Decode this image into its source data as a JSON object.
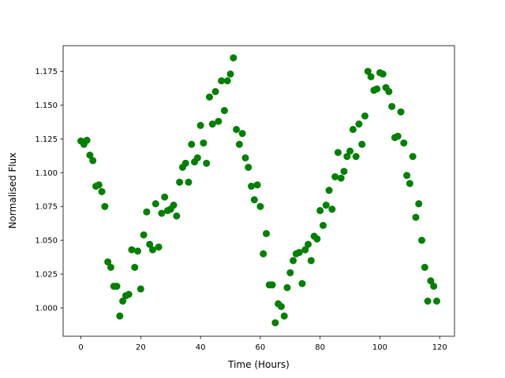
{
  "chart_data": {
    "type": "scatter",
    "x_label": "Time (Hours)",
    "y_label": "Normalised Flux",
    "color": "#008000",
    "x": [
      0,
      1,
      2,
      3,
      4,
      5,
      6,
      7,
      8,
      9,
      10,
      11,
      12,
      13,
      14,
      15,
      16,
      17,
      18,
      19,
      20,
      21,
      22,
      23,
      24,
      25,
      26,
      27,
      28,
      29,
      30,
      31,
      32,
      33,
      34,
      35,
      36,
      37,
      38,
      39,
      40,
      41,
      42,
      43,
      44,
      45,
      46,
      47,
      48,
      49,
      50,
      51,
      52,
      53,
      54,
      55,
      56,
      57,
      58,
      59,
      60,
      61,
      62,
      63,
      64,
      65,
      66,
      67,
      68,
      69,
      70,
      71,
      72,
      73,
      74,
      75,
      76,
      77,
      78,
      79,
      80,
      81,
      82,
      83,
      84,
      85,
      86,
      87,
      88,
      89,
      90,
      91,
      92,
      93,
      94,
      95,
      96,
      97,
      98,
      99,
      100,
      101,
      102,
      103,
      104,
      105,
      106,
      107,
      108,
      109,
      110,
      111,
      112,
      113,
      114,
      115,
      116,
      117,
      118,
      119
    ],
    "values": [
      1.1235,
      1.121,
      1.124,
      1.113,
      1.109,
      1.09,
      1.091,
      1.086,
      1.075,
      1.034,
      1.03,
      1.016,
      1.016,
      0.994,
      1.005,
      1.009,
      1.01,
      1.043,
      1.03,
      1.042,
      1.014,
      1.054,
      1.071,
      1.047,
      1.043,
      1.077,
      1.045,
      1.07,
      1.082,
      1.072,
      1.073,
      1.076,
      1.068,
      1.093,
      1.104,
      1.107,
      1.093,
      1.121,
      1.108,
      1.111,
      1.135,
      1.122,
      1.107,
      1.156,
      1.136,
      1.16,
      1.138,
      1.168,
      1.146,
      1.168,
      1.173,
      1.185,
      1.132,
      1.121,
      1.129,
      1.111,
      1.104,
      1.09,
      1.08,
      1.091,
      1.075,
      1.04,
      1.055,
      1.017,
      1.017,
      0.989,
      1.003,
      1.001,
      0.994,
      1.015,
      1.026,
      1.035,
      1.04,
      1.041,
      1.018,
      1.043,
      1.047,
      1.035,
      1.053,
      1.051,
      1.072,
      1.061,
      1.076,
      1.087,
      1.073,
      1.097,
      1.115,
      1.096,
      1.101,
      1.112,
      1.116,
      1.132,
      1.112,
      1.136,
      1.121,
      1.142,
      1.175,
      1.171,
      1.161,
      1.162,
      1.174,
      1.173,
      1.163,
      1.16,
      1.149,
      1.126,
      1.127,
      1.145,
      1.122,
      1.098,
      1.092,
      1.112,
      1.067,
      1.077,
      1.05,
      1.03,
      1.005,
      1.02,
      1.016,
      1.005
    ],
    "xlim": [
      -5.95,
      124.95
    ],
    "ylim": [
      0.979,
      1.194
    ],
    "xticks": [
      0,
      20,
      40,
      60,
      80,
      100,
      120
    ],
    "yticks": [
      {
        "value": 1,
        "label": "1.000"
      },
      1.025,
      {
        "value": 1.05,
        "label": "1.050"
      },
      1.075,
      {
        "value": 1.1,
        "label": "1.100"
      },
      1.125,
      {
        "value": 1.15,
        "label": "1.150"
      },
      1.175
    ],
    "grid": false
  }
}
